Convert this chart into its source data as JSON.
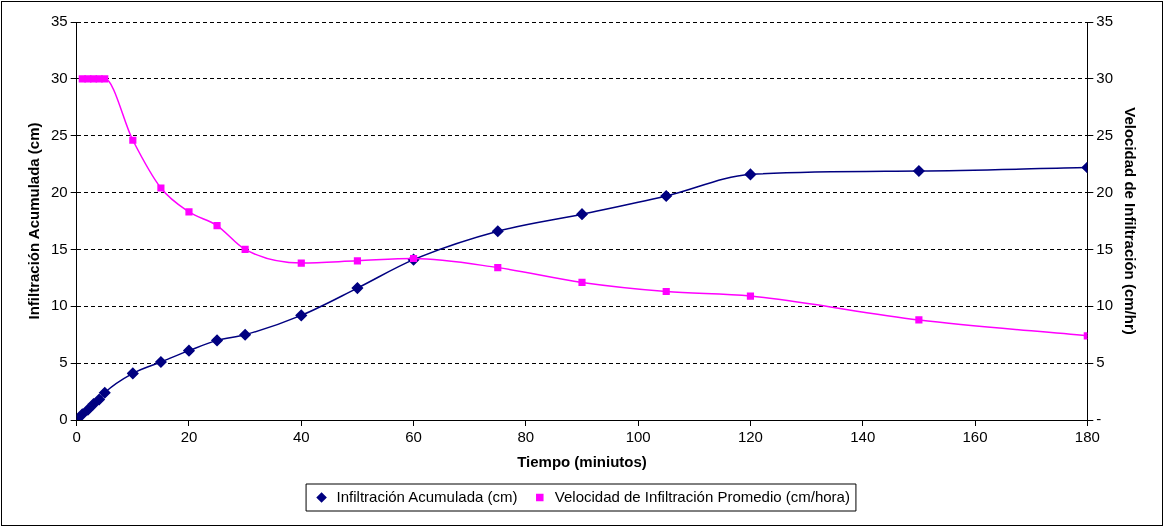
{
  "chart_data": {
    "type": "line",
    "xlabel": "Tiempo (miniutos)",
    "ylabel": "Infiltración Acumulada (cm)",
    "y2label": "Velocidad de Infiltración (cm/hr)",
    "xlim": [
      0,
      180
    ],
    "xticks": [
      0,
      20,
      40,
      60,
      80,
      100,
      120,
      140,
      160,
      180
    ],
    "ylim": [
      0,
      35
    ],
    "yticks": [
      0,
      5,
      10,
      15,
      20,
      25,
      30,
      35
    ],
    "y2lim": [
      0,
      35
    ],
    "y2ticks": [
      {
        "value": 0,
        "label": "-"
      },
      5,
      10,
      15,
      20,
      25,
      30,
      35
    ],
    "grid": "y",
    "legend": "bottom",
    "line_style": "solid",
    "series": [
      {
        "name": "Infiltración Acumulada (cm)",
        "color": "#000080",
        "marker": "diamond",
        "x": [
          0,
          1,
          2,
          3,
          4,
          5,
          10,
          15,
          20,
          25,
          30,
          40,
          50,
          60,
          75,
          90,
          105,
          120,
          150,
          180
        ],
        "values": [
          0,
          0.5,
          0.9,
          1.4,
          1.8,
          2.4,
          4.1,
          5.1,
          6.1,
          7.0,
          7.5,
          9.2,
          11.6,
          14.1,
          16.6,
          18.1,
          19.7,
          21.6,
          21.9,
          22.2
        ]
      },
      {
        "name": "Velocidad de Infiltración Promedio (cm/hora)",
        "color": "#ff00ff",
        "marker": "square",
        "axis": "y2",
        "x": [
          1,
          2,
          3,
          4,
          5,
          10,
          15,
          20,
          25,
          30,
          40,
          50,
          60,
          75,
          90,
          105,
          120,
          150,
          180
        ],
        "values": [
          30,
          30,
          30,
          30,
          30,
          24.6,
          20.4,
          18.3,
          17.1,
          15.0,
          13.8,
          14.0,
          14.2,
          13.4,
          12.1,
          11.3,
          10.9,
          8.8,
          7.4
        ]
      }
    ]
  }
}
